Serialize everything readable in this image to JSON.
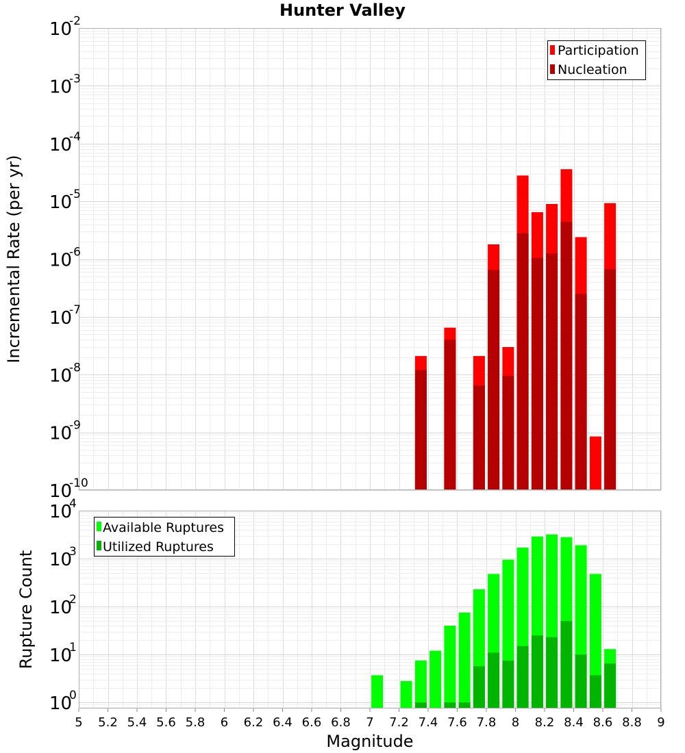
{
  "chart_data": [
    {
      "type": "bar",
      "title": "Hunter Valley",
      "ylabel": "Incremental Rate (per yr)",
      "xlabel": "",
      "yscale": "log",
      "ylim": [
        1e-10,
        0.01
      ],
      "xlim": [
        5,
        9
      ],
      "grid": true,
      "legend_position": "top-right",
      "yticks": [
        {
          "base": "10",
          "exp": "-10",
          "value": 1e-10
        },
        {
          "base": "10",
          "exp": "-9",
          "value": 1e-09
        },
        {
          "base": "10",
          "exp": "-8",
          "value": 1e-08
        },
        {
          "base": "10",
          "exp": "-7",
          "value": 1e-07
        },
        {
          "base": "10",
          "exp": "-6",
          "value": 1e-06
        },
        {
          "base": "10",
          "exp": "-5",
          "value": 1e-05
        },
        {
          "base": "10",
          "exp": "-4",
          "value": 0.0001
        },
        {
          "base": "10",
          "exp": "-3",
          "value": 0.001
        },
        {
          "base": "10",
          "exp": "-2",
          "value": 0.01
        }
      ],
      "series": [
        {
          "name": "Participation",
          "color": "#ff0000",
          "points": [
            {
              "x": 7.35,
              "y": 2.1e-08
            },
            {
              "x": 7.55,
              "y": 6.5e-08
            },
            {
              "x": 7.75,
              "y": 2.1e-08
            },
            {
              "x": 7.85,
              "y": 1.8e-06
            },
            {
              "x": 7.95,
              "y": 3e-08
            },
            {
              "x": 8.05,
              "y": 2.8e-05
            },
            {
              "x": 8.15,
              "y": 6.5e-06
            },
            {
              "x": 8.25,
              "y": 9e-06
            },
            {
              "x": 8.35,
              "y": 3.6e-05
            },
            {
              "x": 8.45,
              "y": 2.4e-06
            },
            {
              "x": 8.55,
              "y": 8.5e-10
            },
            {
              "x": 8.65,
              "y": 9.3e-06
            }
          ]
        },
        {
          "name": "Nucleation",
          "color": "#b40000",
          "points": [
            {
              "x": 7.35,
              "y": 1.2e-08
            },
            {
              "x": 7.55,
              "y": 4e-08
            },
            {
              "x": 7.75,
              "y": 6.5e-09
            },
            {
              "x": 7.85,
              "y": 6.5e-07
            },
            {
              "x": 7.95,
              "y": 9.5e-09
            },
            {
              "x": 8.05,
              "y": 2.8e-06
            },
            {
              "x": 8.15,
              "y": 1.05e-06
            },
            {
              "x": 8.25,
              "y": 1.25e-06
            },
            {
              "x": 8.35,
              "y": 4.4e-06
            },
            {
              "x": 8.45,
              "y": 2.5e-07
            },
            {
              "x": 8.65,
              "y": 6.7e-07
            }
          ]
        }
      ]
    },
    {
      "type": "bar",
      "title": "",
      "ylabel": "Rupture Count",
      "xlabel": "Magnitude",
      "yscale": "log",
      "ylim": [
        0.75,
        10000
      ],
      "xlim": [
        5,
        9
      ],
      "grid": true,
      "legend_position": "top-left",
      "xticks": [
        "5",
        "5.2",
        "5.4",
        "5.6",
        "5.8",
        "6",
        "6.2",
        "6.4",
        "6.6",
        "6.8",
        "7",
        "7.2",
        "7.4",
        "7.6",
        "7.8",
        "8",
        "8.2",
        "8.4",
        "8.6",
        "8.8",
        "9"
      ],
      "yticks": [
        {
          "base": "10",
          "exp": "0",
          "value": 1
        },
        {
          "base": "10",
          "exp": "1",
          "value": 10
        },
        {
          "base": "10",
          "exp": "2",
          "value": 100
        },
        {
          "base": "10",
          "exp": "3",
          "value": 1000
        },
        {
          "base": "10",
          "exp": "4",
          "value": 10000
        }
      ],
      "series": [
        {
          "name": "Available Ruptures",
          "color": "#00ff00",
          "points": [
            {
              "x": 7.05,
              "y": 3.7
            },
            {
              "x": 7.25,
              "y": 2.8
            },
            {
              "x": 7.35,
              "y": 7.5
            },
            {
              "x": 7.45,
              "y": 12
            },
            {
              "x": 7.55,
              "y": 40
            },
            {
              "x": 7.65,
              "y": 75
            },
            {
              "x": 7.75,
              "y": 230
            },
            {
              "x": 7.85,
              "y": 480
            },
            {
              "x": 7.95,
              "y": 950
            },
            {
              "x": 8.05,
              "y": 1700
            },
            {
              "x": 8.15,
              "y": 2900
            },
            {
              "x": 8.25,
              "y": 3200
            },
            {
              "x": 8.35,
              "y": 2800
            },
            {
              "x": 8.45,
              "y": 1900
            },
            {
              "x": 8.55,
              "y": 480
            },
            {
              "x": 8.65,
              "y": 13
            }
          ]
        },
        {
          "name": "Utilized Ruptures",
          "color": "#00b400",
          "points": [
            {
              "x": 7.35,
              "y": 1
            },
            {
              "x": 7.55,
              "y": 1
            },
            {
              "x": 7.65,
              "y": 1
            },
            {
              "x": 7.75,
              "y": 5.7
            },
            {
              "x": 7.85,
              "y": 11
            },
            {
              "x": 7.95,
              "y": 7.5
            },
            {
              "x": 8.05,
              "y": 15
            },
            {
              "x": 8.15,
              "y": 25
            },
            {
              "x": 8.25,
              "y": 23
            },
            {
              "x": 8.35,
              "y": 50
            },
            {
              "x": 8.45,
              "y": 10
            },
            {
              "x": 8.55,
              "y": 3.7
            },
            {
              "x": 8.65,
              "y": 6.5
            }
          ]
        }
      ]
    }
  ]
}
